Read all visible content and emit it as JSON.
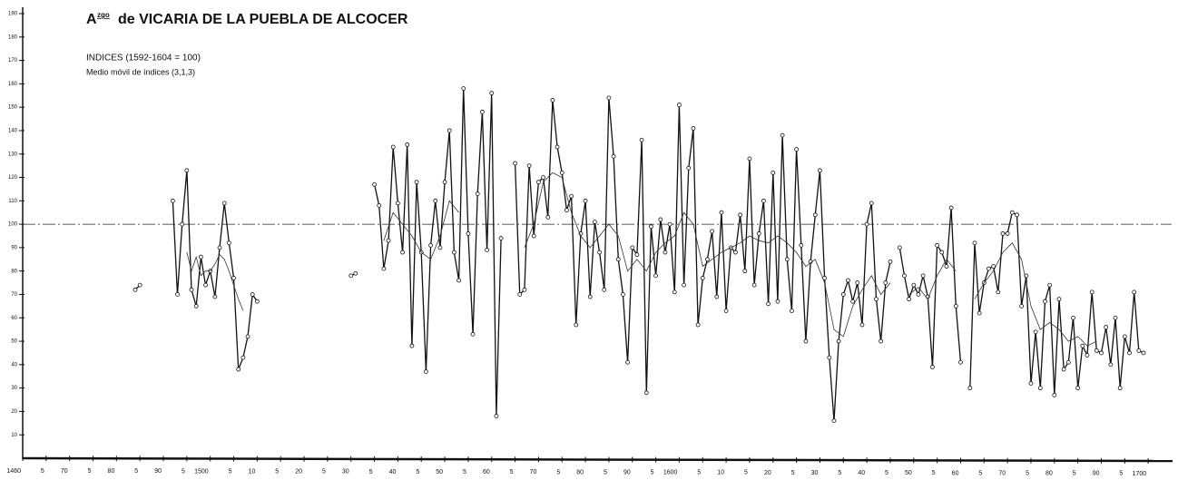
{
  "chart_data": {
    "type": "line",
    "title_prefix": "A",
    "title_sup": "zgo",
    "title": "de VICARIA DE LA PUEBLA DE ALCOCER",
    "subtitle": [
      "INDICES (1592-1604 = 100)",
      "Medio móvil de índices (3,1,3)"
    ],
    "xlim": [
      1460,
      1705
    ],
    "ylim": [
      0,
      190
    ],
    "yticks": [
      10,
      20,
      30,
      40,
      50,
      60,
      70,
      80,
      90,
      100,
      110,
      120,
      130,
      140,
      150,
      160,
      170,
      180,
      190
    ],
    "xticks": [
      {
        "value": 1460,
        "label": "1460"
      },
      {
        "value": 1465,
        "label": "5"
      },
      {
        "value": 1470,
        "label": "70"
      },
      {
        "value": 1475,
        "label": "5"
      },
      {
        "value": 1480,
        "label": "80"
      },
      {
        "value": 1485,
        "label": "5"
      },
      {
        "value": 1490,
        "label": "90"
      },
      {
        "value": 1495,
        "label": "5"
      },
      {
        "value": 1500,
        "label": "1500"
      },
      {
        "value": 1505,
        "label": "5"
      },
      {
        "value": 1510,
        "label": "10"
      },
      {
        "value": 1515,
        "label": "5"
      },
      {
        "value": 1520,
        "label": "20"
      },
      {
        "value": 1525,
        "label": "5"
      },
      {
        "value": 1530,
        "label": "30"
      },
      {
        "value": 1535,
        "label": "5"
      },
      {
        "value": 1540,
        "label": "40"
      },
      {
        "value": 1545,
        "label": "5"
      },
      {
        "value": 1550,
        "label": "50"
      },
      {
        "value": 1555,
        "label": "5"
      },
      {
        "value": 1560,
        "label": "60"
      },
      {
        "value": 1565,
        "label": "5"
      },
      {
        "value": 1570,
        "label": "70"
      },
      {
        "value": 1575,
        "label": "5"
      },
      {
        "value": 1580,
        "label": "80"
      },
      {
        "value": 1585,
        "label": "5"
      },
      {
        "value": 1590,
        "label": "90"
      },
      {
        "value": 1595,
        "label": "5"
      },
      {
        "value": 1600,
        "label": "1600"
      },
      {
        "value": 1605,
        "label": "5"
      },
      {
        "value": 1610,
        "label": "10"
      },
      {
        "value": 1615,
        "label": "5"
      },
      {
        "value": 1620,
        "label": "20"
      },
      {
        "value": 1625,
        "label": "5"
      },
      {
        "value": 1630,
        "label": "30"
      },
      {
        "value": 1635,
        "label": "5"
      },
      {
        "value": 1640,
        "label": "40"
      },
      {
        "value": 1645,
        "label": "5"
      },
      {
        "value": 1650,
        "label": "50"
      },
      {
        "value": 1655,
        "label": "5"
      },
      {
        "value": 1660,
        "label": "60"
      },
      {
        "value": 1665,
        "label": "5"
      },
      {
        "value": 1670,
        "label": "70"
      },
      {
        "value": 1675,
        "label": "5"
      },
      {
        "value": 1680,
        "label": "80"
      },
      {
        "value": 1685,
        "label": "5"
      },
      {
        "value": 1690,
        "label": "90"
      },
      {
        "value": 1695,
        "label": "5"
      },
      {
        "value": 1700,
        "label": "1700"
      }
    ],
    "reference_line": 100,
    "series": [
      {
        "color": "#111111",
        "markers": true,
        "x": [
          1484,
          1485,
          1486,
          1492,
          1493,
          1494,
          1495,
          1496,
          1497,
          1498,
          1499,
          1500,
          1501,
          1502,
          1503,
          1504,
          1505,
          1506,
          1507,
          1508,
          1509,
          1510,
          1511,
          1530,
          1531,
          1532,
          1535,
          1536,
          1537,
          1538,
          1539,
          1540,
          1541,
          1542,
          1543,
          1544,
          1545,
          1546,
          1547,
          1548,
          1549,
          1550,
          1551,
          1552,
          1553,
          1554,
          1555,
          1556,
          1557,
          1558,
          1559,
          1560,
          1561,
          1562,
          1563,
          1565,
          1566,
          1567,
          1568,
          1569,
          1570,
          1571,
          1572,
          1573,
          1574,
          1575,
          1576,
          1577,
          1578,
          1579,
          1580,
          1581,
          1582,
          1583,
          1584,
          1585,
          1586,
          1587,
          1588,
          1589,
          1590,
          1591,
          1592,
          1593,
          1594,
          1595,
          1596,
          1597,
          1598,
          1599,
          1600,
          1601,
          1602,
          1603,
          1604,
          1605,
          1606,
          1607,
          1608,
          1609,
          1610,
          1611,
          1612,
          1613,
          1614,
          1615,
          1616,
          1617,
          1618,
          1619,
          1620,
          1621,
          1622,
          1623,
          1624,
          1625,
          1626,
          1627,
          1628,
          1629,
          1630,
          1631,
          1632,
          1633,
          1634,
          1635,
          1636,
          1637,
          1638,
          1639,
          1640,
          1641,
          1642,
          1643,
          1644,
          1645,
          1646,
          1647,
          1648,
          1649,
          1650,
          1651,
          1652,
          1653,
          1654,
          1655,
          1656,
          1657,
          1658,
          1659,
          1660,
          1661,
          1662,
          1663,
          1664,
          1665,
          1666,
          1667,
          1668,
          1669,
          1670,
          1671,
          1672,
          1673,
          1674,
          1675,
          1676,
          1677,
          1678,
          1679,
          1680,
          1681,
          1682,
          1683,
          1684,
          1685,
          1686,
          1687,
          1688,
          1689,
          1690,
          1691,
          1692,
          1693,
          1694,
          1695,
          1696,
          1697,
          1698,
          1699
        ],
        "values": [
          72,
          74,
          null,
          110,
          70,
          100,
          123,
          72,
          65,
          86,
          74,
          80,
          69,
          90,
          109,
          92,
          77,
          38,
          43,
          52,
          70,
          67,
          null,
          78,
          79,
          null,
          117,
          108,
          81,
          93,
          133,
          109,
          88,
          134,
          48,
          118,
          88,
          37,
          91,
          110,
          90,
          118,
          140,
          88,
          76,
          158,
          96,
          53,
          113,
          148,
          89,
          156,
          18,
          94,
          null,
          126,
          70,
          72,
          125,
          95,
          118,
          120,
          103,
          153,
          133,
          122,
          106,
          112,
          57,
          96,
          110,
          69,
          101,
          88,
          72,
          154,
          129,
          85,
          70,
          41,
          90,
          87,
          136,
          28,
          99,
          78,
          102,
          88,
          100,
          71,
          151,
          74,
          124,
          141,
          57,
          77,
          85,
          97,
          69,
          105,
          63,
          90,
          88,
          104,
          80,
          128,
          74,
          96,
          110,
          66,
          122,
          67,
          138,
          85,
          63,
          132,
          91,
          50,
          84,
          104,
          123,
          77,
          43,
          16,
          50,
          70,
          76,
          67,
          75,
          57,
          100,
          109,
          68,
          50,
          75,
          84,
          null,
          90,
          78,
          68,
          74,
          70,
          78,
          69,
          39,
          91,
          88,
          82,
          107,
          65,
          41,
          null,
          30,
          92,
          62,
          75,
          81,
          82,
          71,
          96,
          96,
          105,
          104,
          65,
          78,
          32,
          54,
          30,
          67,
          74,
          27,
          68,
          38,
          41,
          60,
          30,
          48,
          44,
          71,
          46,
          45,
          56,
          40,
          60,
          30,
          52,
          45,
          71,
          46,
          45
        ]
      },
      {
        "color": "#333333",
        "markers": false,
        "x": [
          1495,
          1496,
          1497,
          1498,
          1499,
          1500,
          1501,
          1502,
          1503,
          1504,
          1505,
          1506,
          1507,
          1508,
          1537,
          1539,
          1541,
          1543,
          1545,
          1547,
          1549,
          1551,
          1553,
          1554,
          1567,
          1569,
          1571,
          1573,
          1575,
          1577,
          1579,
          1581,
          1583,
          1585,
          1587,
          1589,
          1591,
          1593,
          1595,
          1597,
          1599,
          1601,
          1603,
          1605,
          1607,
          1609,
          1611,
          1613,
          1615,
          1617,
          1619,
          1621,
          1623,
          1625,
          1627,
          1629,
          1631,
          1633,
          1635,
          1637,
          1639,
          1641,
          1643,
          1645,
          1646,
          1649,
          1651,
          1653,
          1655,
          1657,
          1659,
          1660,
          1663,
          1665,
          1667,
          1669,
          1671,
          1673,
          1675,
          1677,
          1679,
          1681,
          1683,
          1685,
          1687,
          1689
        ],
        "values": [
          88,
          80,
          86,
          78,
          80,
          80,
          83,
          87,
          85,
          80,
          74,
          68,
          63,
          null,
          93,
          105,
          100,
          95,
          88,
          85,
          95,
          110,
          105,
          null,
          90,
          100,
          118,
          122,
          120,
          105,
          95,
          90,
          95,
          100,
          95,
          80,
          85,
          80,
          88,
          92,
          95,
          105,
          100,
          82,
          85,
          88,
          90,
          92,
          95,
          93,
          92,
          95,
          92,
          88,
          82,
          85,
          75,
          55,
          52,
          65,
          72,
          78,
          70,
          75,
          null,
          70,
          73,
          68,
          78,
          85,
          80,
          null,
          68,
          75,
          80,
          88,
          92,
          85,
          65,
          55,
          58,
          55,
          50,
          52,
          48,
          50
        ]
      }
    ]
  }
}
